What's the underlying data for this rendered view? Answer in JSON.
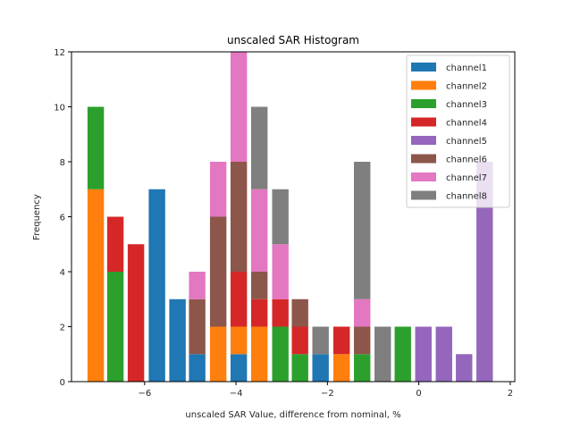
{
  "chart_data": {
    "type": "bar",
    "stacked": true,
    "title": "unscaled SAR Histogram",
    "xlabel": "unscaled SAR Value, difference from nominal, %",
    "ylabel": "Frequency",
    "xlim": [
      -7.6,
      2.1
    ],
    "ylim": [
      0,
      12
    ],
    "xticks": [
      -6,
      -4,
      -2,
      0,
      2
    ],
    "xtick_labels": [
      "−6",
      "−4",
      "−2",
      "0",
      "2"
    ],
    "yticks": [
      0,
      2,
      4,
      6,
      8,
      10,
      12
    ],
    "ytick_labels": [
      "0",
      "2",
      "4",
      "6",
      "8",
      "10",
      "12"
    ],
    "bin_width": 0.45,
    "bar_width_fraction": 0.8,
    "x": [
      -7.07,
      -6.64,
      -6.19,
      -5.73,
      -5.28,
      -4.85,
      -4.39,
      -3.94,
      -3.49,
      -3.03,
      -2.6,
      -2.15,
      -1.69,
      -1.24,
      -0.79,
      -0.35,
      0.1,
      0.55,
      0.99,
      1.44
    ],
    "legend_position": "top-right",
    "grid": false,
    "series": [
      {
        "name": "channel1",
        "color": "#1f77b4",
        "values": [
          0,
          0,
          0,
          7,
          3,
          1,
          0,
          1,
          0,
          0,
          0,
          1,
          0,
          0,
          0,
          0,
          0,
          0,
          0,
          0
        ]
      },
      {
        "name": "channel2",
        "color": "#ff7f0e",
        "values": [
          7,
          0,
          0,
          0,
          0,
          0,
          2,
          1,
          2,
          0,
          0,
          0,
          1,
          0,
          0,
          0,
          0,
          0,
          0,
          0
        ]
      },
      {
        "name": "channel3",
        "color": "#2ca02c",
        "values": [
          3,
          4,
          0,
          0,
          0,
          0,
          0,
          0,
          0,
          2,
          1,
          0,
          0,
          1,
          0,
          2,
          0,
          0,
          0,
          0
        ]
      },
      {
        "name": "channel4",
        "color": "#d62728",
        "values": [
          0,
          2,
          5,
          0,
          0,
          0,
          0,
          2,
          1,
          1,
          1,
          0,
          1,
          0,
          0,
          0,
          0,
          0,
          0,
          0
        ]
      },
      {
        "name": "channel5",
        "color": "#9467bd",
        "values": [
          0,
          0,
          0,
          0,
          0,
          0,
          0,
          0,
          0,
          0,
          0,
          0,
          0,
          0,
          0,
          0,
          2,
          2,
          1,
          8
        ]
      },
      {
        "name": "channel6",
        "color": "#8c564b",
        "values": [
          0,
          0,
          0,
          0,
          0,
          2,
          4,
          4,
          1,
          0,
          1,
          0,
          0,
          1,
          0,
          0,
          0,
          0,
          0,
          0
        ]
      },
      {
        "name": "channel7",
        "color": "#e377c2",
        "values": [
          0,
          0,
          0,
          0,
          0,
          1,
          2,
          4,
          3,
          2,
          0,
          0,
          0,
          1,
          0,
          0,
          0,
          0,
          0,
          0
        ]
      },
      {
        "name": "channel8",
        "color": "#7f7f7f",
        "values": [
          0,
          0,
          0,
          0,
          0,
          0,
          0,
          0,
          3,
          2,
          0,
          1,
          0,
          5,
          2,
          0,
          0,
          0,
          0,
          0
        ]
      }
    ]
  }
}
